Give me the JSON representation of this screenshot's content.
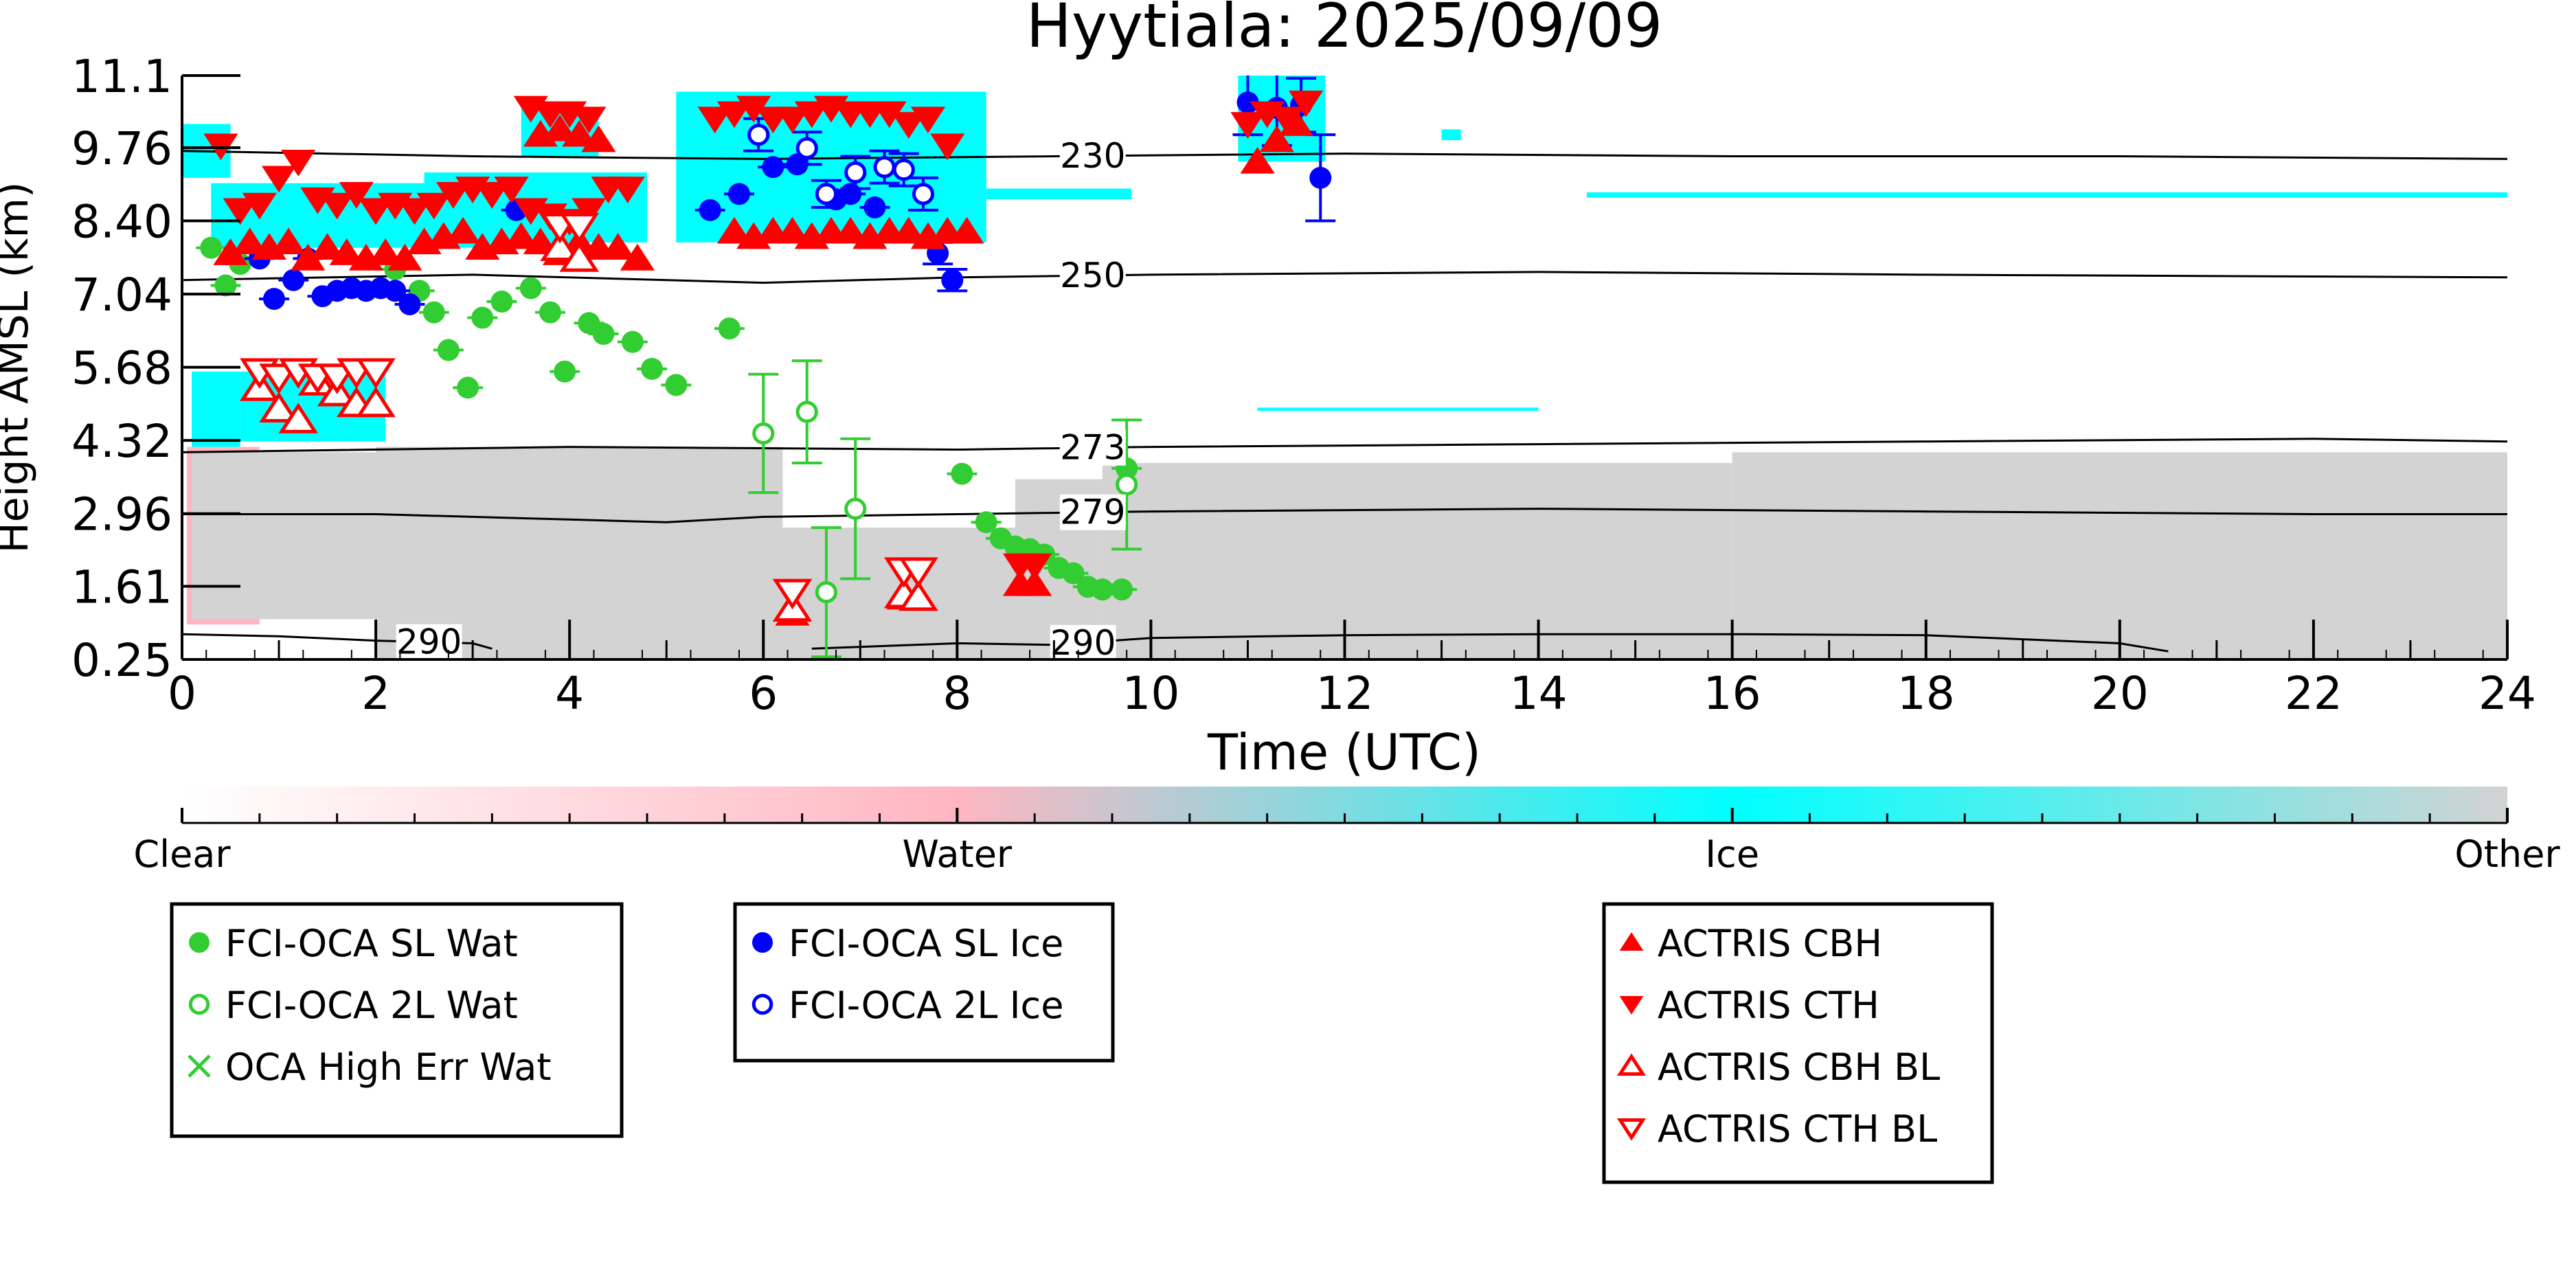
{
  "chart_data": {
    "type": "scatter",
    "title": "Hyytiala: 2025/09/09",
    "xlabel": "Time (UTC)",
    "ylabel": "Height AMSL (km)",
    "xlim": [
      0,
      24
    ],
    "ylim": [
      0.25,
      11.1
    ],
    "x_ticks": [
      0,
      2,
      4,
      6,
      8,
      10,
      12,
      14,
      16,
      18,
      20,
      22,
      24
    ],
    "y_ticks": [
      "0.25",
      "1.61",
      "2.96",
      "4.32",
      "5.68",
      "7.04",
      "8.40",
      "9.76",
      "11.1"
    ],
    "background_classes": [
      {
        "name": "water",
        "color": "#ffb6c1",
        "cells": [
          [
            0.05,
            0.8,
            0.9,
            4.2
          ],
          [
            0.8,
            2.5,
            1.0,
            4.0
          ],
          [
            2.5,
            6.0,
            1.0,
            3.9
          ],
          [
            6.0,
            8.5,
            1.0,
            2.4
          ],
          [
            8.3,
            9.3,
            1.0,
            1.8
          ]
        ]
      },
      {
        "name": "ice",
        "color": "#00ffff",
        "cells": [
          [
            0.0,
            0.5,
            9.2,
            10.2
          ],
          [
            0.1,
            0.6,
            4.2,
            5.6
          ],
          [
            0.6,
            2.1,
            4.3,
            5.6
          ],
          [
            0.3,
            4.0,
            7.9,
            9.1
          ],
          [
            2.5,
            4.8,
            8.0,
            9.3
          ],
          [
            3.5,
            4.3,
            9.6,
            10.5
          ],
          [
            5.1,
            8.3,
            8.0,
            10.8
          ],
          [
            8.3,
            9.8,
            8.8,
            9.0
          ],
          [
            10.9,
            11.8,
            9.5,
            11.1
          ],
          [
            13.0,
            13.2,
            9.9,
            10.1
          ],
          [
            14.5,
            24.0,
            8.83,
            8.93
          ],
          [
            11.1,
            14.0,
            4.87,
            4.93
          ]
        ]
      },
      {
        "name": "other",
        "color": "#d3d3d3",
        "cells": [
          [
            0.1,
            2.0,
            1.0,
            4.1
          ],
          [
            2.0,
            6.2,
            0.25,
            4.2
          ],
          [
            6.2,
            8.6,
            0.25,
            2.7
          ],
          [
            8.6,
            9.5,
            0.25,
            3.6
          ],
          [
            9.5,
            16.0,
            0.25,
            3.9
          ],
          [
            16.0,
            24.0,
            0.25,
            4.1
          ]
        ]
      }
    ],
    "isotherms": [
      {
        "label": "230",
        "label_x": 9.4,
        "points": [
          [
            0,
            9.7
          ],
          [
            3,
            9.6
          ],
          [
            6,
            9.55
          ],
          [
            9,
            9.6
          ],
          [
            12,
            9.65
          ],
          [
            16,
            9.6
          ],
          [
            20,
            9.6
          ],
          [
            24,
            9.55
          ]
        ]
      },
      {
        "label": "250",
        "label_x": 9.4,
        "points": [
          [
            0,
            7.3
          ],
          [
            3,
            7.4
          ],
          [
            6,
            7.25
          ],
          [
            8,
            7.35
          ],
          [
            10,
            7.4
          ],
          [
            14,
            7.45
          ],
          [
            18,
            7.4
          ],
          [
            24,
            7.35
          ]
        ]
      },
      {
        "label": "273",
        "label_x": 9.4,
        "points": [
          [
            0,
            4.1
          ],
          [
            4,
            4.2
          ],
          [
            8,
            4.15
          ],
          [
            10,
            4.2
          ],
          [
            14,
            4.25
          ],
          [
            18,
            4.3
          ],
          [
            22,
            4.35
          ],
          [
            24,
            4.3
          ]
        ]
      },
      {
        "label": "279",
        "label_x": 9.4,
        "points": [
          [
            0,
            2.95
          ],
          [
            2,
            2.95
          ],
          [
            4,
            2.85
          ],
          [
            5,
            2.8
          ],
          [
            6,
            2.9
          ],
          [
            8,
            2.95
          ],
          [
            10,
            3.0
          ],
          [
            14,
            3.05
          ],
          [
            18,
            3.0
          ],
          [
            22,
            2.95
          ],
          [
            24,
            2.95
          ]
        ]
      },
      {
        "label": "290",
        "label_x": 2.55,
        "points": [
          [
            0,
            0.72
          ],
          [
            1,
            0.68
          ],
          [
            2,
            0.6
          ],
          [
            3,
            0.55
          ],
          [
            3.2,
            0.45
          ]
        ]
      },
      {
        "label": "290",
        "label_x": 9.3,
        "points": [
          [
            6.5,
            0.45
          ],
          [
            8,
            0.55
          ],
          [
            9,
            0.52
          ],
          [
            10,
            0.65
          ],
          [
            12,
            0.7
          ],
          [
            14,
            0.72
          ],
          [
            16,
            0.72
          ],
          [
            18,
            0.7
          ],
          [
            20,
            0.55
          ],
          [
            20.5,
            0.4
          ]
        ]
      }
    ],
    "series": [
      {
        "name": "FCI-OCA SL Wat",
        "color": "#32cd32",
        "marker": "filled-circle",
        "x": [
          0.3,
          0.45,
          0.6,
          2.2,
          2.45,
          2.6,
          2.75,
          2.95,
          3.1,
          3.3,
          3.6,
          3.8,
          3.95,
          4.2,
          4.35,
          4.65,
          4.85,
          5.1,
          5.65,
          8.05,
          8.3,
          8.45,
          8.6,
          8.75,
          8.9,
          9.05,
          9.2,
          9.35,
          9.5,
          9.7,
          9.75
        ],
        "y": [
          7.9,
          7.2,
          7.6,
          7.5,
          7.1,
          6.7,
          6.0,
          5.3,
          6.6,
          6.9,
          7.15,
          6.7,
          5.6,
          6.5,
          6.3,
          6.15,
          5.65,
          5.35,
          6.4,
          3.7,
          2.8,
          2.5,
          2.35,
          2.3,
          2.2,
          1.95,
          1.85,
          1.6,
          1.55,
          1.55,
          3.8
        ],
        "err": [
          0.1,
          0.1,
          0.1,
          0.1,
          0.1,
          0.1,
          0.1,
          0.1,
          0.1,
          0.1,
          0.1,
          0.1,
          0.1,
          0.1,
          0.1,
          0.1,
          0.1,
          0.1,
          0.1,
          0.1,
          0.1,
          0.1,
          0.1,
          0.1,
          0.1,
          0.1,
          0.1,
          0.1,
          0.1,
          0.1,
          0.1
        ]
      },
      {
        "name": "FCI-OCA 2L Wat",
        "color": "#32cd32",
        "marker": "open-circle",
        "x": [
          6.0,
          6.45,
          6.65,
          6.95,
          9.75
        ],
        "y": [
          4.45,
          4.85,
          1.5,
          3.05,
          3.5
        ],
        "err": [
          1.1,
          0.95,
          1.2,
          1.3,
          1.2
        ]
      },
      {
        "name": "OCA High Err Wat",
        "color": "#32cd32",
        "marker": "x",
        "x": [],
        "y": [],
        "err": []
      },
      {
        "name": "FCI-OCA SL Ice",
        "color": "#0000ff",
        "marker": "filled-circle",
        "x": [
          0.8,
          0.95,
          1.15,
          1.3,
          1.45,
          1.6,
          1.75,
          1.9,
          2.05,
          2.2,
          2.35,
          3.45,
          5.45,
          5.75,
          6.1,
          6.35,
          6.75,
          6.9,
          7.15,
          7.8,
          7.95,
          11.0,
          11.3,
          11.55,
          11.75
        ],
        "y": [
          7.7,
          6.95,
          7.3,
          7.7,
          7.0,
          7.1,
          7.15,
          7.1,
          7.15,
          7.1,
          6.85,
          8.6,
          8.6,
          8.9,
          9.4,
          9.45,
          8.8,
          8.9,
          8.65,
          7.8,
          7.3,
          10.6,
          10.5,
          10.55,
          9.2
        ],
        "err": [
          0.1,
          0.1,
          0.1,
          0.1,
          0.1,
          0.1,
          0.1,
          0.1,
          0.1,
          0.1,
          0.1,
          0.1,
          0.1,
          0.1,
          0.1,
          0.1,
          0.1,
          0.1,
          0.1,
          0.2,
          0.2,
          0.6,
          0.7,
          0.5,
          0.8
        ]
      },
      {
        "name": "FCI-OCA 2L Ice",
        "color": "#0000ff",
        "marker": "open-circle",
        "x": [
          5.95,
          6.45,
          6.65,
          6.95,
          7.25,
          7.45,
          7.65
        ],
        "y": [
          10.0,
          9.75,
          8.9,
          9.3,
          9.4,
          9.35,
          8.9
        ],
        "err": [
          0.3,
          0.3,
          0.25,
          0.3,
          0.3,
          0.3,
          0.3
        ]
      },
      {
        "name": "ACTRIS CBH",
        "color": "#ff0000",
        "marker": "triangle-up",
        "x": [
          0.5,
          0.7,
          0.9,
          1.1,
          1.3,
          1.5,
          1.7,
          1.9,
          2.1,
          2.3,
          2.5,
          2.7,
          2.9,
          3.1,
          3.3,
          3.5,
          3.7,
          3.9,
          4.1,
          4.3,
          4.5,
          4.7,
          5.7,
          5.9,
          6.1,
          6.3,
          6.5,
          6.7,
          6.9,
          7.1,
          7.3,
          7.5,
          7.7,
          7.9,
          8.1,
          3.7,
          3.9,
          4.1,
          4.3,
          11.1,
          11.3,
          11.5,
          6.3,
          7.45,
          7.6,
          8.65,
          8.8
        ],
        "y": [
          7.8,
          8.0,
          7.9,
          8.0,
          7.7,
          7.9,
          7.8,
          7.7,
          7.8,
          7.7,
          8.0,
          8.1,
          8.2,
          7.9,
          8.0,
          8.1,
          8.0,
          7.8,
          8.0,
          7.9,
          7.9,
          7.7,
          8.2,
          8.1,
          8.2,
          8.2,
          8.1,
          8.2,
          8.2,
          8.1,
          8.2,
          8.2,
          8.1,
          8.2,
          8.2,
          10.0,
          10.1,
          10.0,
          9.9,
          9.5,
          9.9,
          10.2,
          1.1,
          1.4,
          1.4,
          1.65,
          1.65
        ]
      },
      {
        "name": "ACTRIS CTH",
        "color": "#ff0000",
        "marker": "triangle-down",
        "x": [
          0.4,
          0.6,
          0.8,
          1.0,
          1.2,
          1.4,
          1.6,
          1.8,
          2.0,
          2.2,
          2.4,
          2.6,
          2.8,
          3.0,
          3.2,
          3.4,
          3.6,
          3.8,
          4.0,
          4.2,
          4.4,
          4.6,
          5.5,
          5.7,
          5.9,
          6.1,
          6.3,
          6.5,
          6.7,
          6.9,
          7.1,
          7.3,
          7.5,
          7.7,
          7.9,
          3.6,
          3.8,
          4.0,
          4.2,
          11.0,
          11.2,
          11.4,
          11.6,
          6.3,
          8.65,
          8.8
        ],
        "y": [
          9.8,
          8.6,
          8.7,
          9.2,
          9.5,
          8.8,
          8.7,
          8.9,
          8.6,
          8.7,
          8.6,
          8.7,
          8.9,
          9.0,
          8.9,
          9.0,
          8.6,
          8.5,
          8.4,
          8.6,
          9.0,
          9.0,
          10.3,
          10.4,
          10.5,
          10.3,
          10.3,
          10.4,
          10.5,
          10.4,
          10.4,
          10.4,
          10.2,
          10.3,
          9.8,
          10.5,
          10.4,
          10.4,
          10.3,
          10.2,
          10.4,
          10.3,
          10.6,
          1.5,
          2.0,
          2.0
        ]
      },
      {
        "name": "ACTRIS CBH BL",
        "color": "#ff0000",
        "marker": "open-triangle-up",
        "x": [
          0.8,
          1.0,
          1.2,
          1.4,
          1.6,
          1.8,
          2.0,
          6.3,
          7.45,
          7.6,
          3.9,
          4.1
        ],
        "y": [
          5.3,
          4.9,
          4.7,
          5.4,
          5.2,
          5.0,
          5.0,
          1.2,
          1.45,
          1.4,
          7.9,
          7.7
        ]
      },
      {
        "name": "ACTRIS CTH BL",
        "color": "#ff0000",
        "marker": "open-triangle-down",
        "x": [
          0.8,
          1.0,
          1.2,
          1.4,
          1.6,
          1.8,
          2.0,
          6.3,
          7.45,
          7.6,
          3.9,
          4.1
        ],
        "y": [
          5.6,
          5.5,
          5.6,
          5.5,
          5.5,
          5.6,
          5.6,
          1.5,
          1.9,
          1.9,
          8.3,
          8.3
        ]
      }
    ],
    "colorbar": {
      "labels": [
        "Clear",
        "Water",
        "Ice",
        "Other"
      ],
      "colors": [
        "#ffffff",
        "#ffb6c1",
        "#00ffff",
        "#d3d3d3"
      ]
    },
    "legends": [
      {
        "entries": [
          "FCI-OCA SL Wat",
          "FCI-OCA 2L Wat",
          "OCA High Err Wat"
        ]
      },
      {
        "entries": [
          "FCI-OCA SL Ice",
          "FCI-OCA 2L Ice"
        ]
      },
      {
        "entries": [
          "ACTRIS CBH",
          "ACTRIS CTH",
          "ACTRIS CBH BL",
          "ACTRIS CTH BL"
        ]
      }
    ]
  }
}
